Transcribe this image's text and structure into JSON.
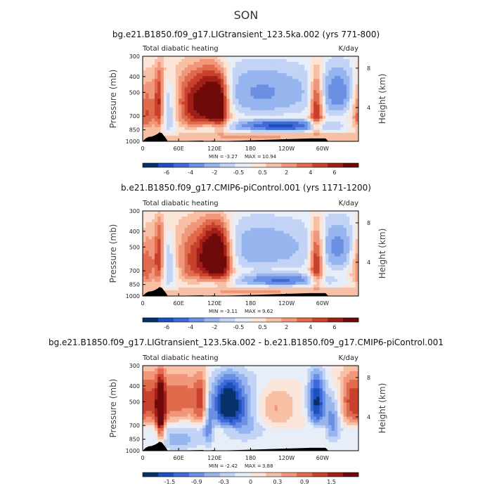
{
  "figure_title": "SON",
  "chart_data": [
    {
      "type": "heatmap",
      "title": "bg.e21.B1850.f09_g17.LIGtransient_123.5ka.002 (yrs 771-800)",
      "left_label": "Total diabatic heating",
      "units": "K/day",
      "ylabel": "Pressure (mb)",
      "ylabel_right": "Height (km)",
      "x_ticks": [
        "0",
        "60E",
        "120E",
        "180",
        "120W",
        "60W"
      ],
      "x_tick_lons": [
        0,
        60,
        120,
        180,
        240,
        300
      ],
      "xlim": [
        0,
        360
      ],
      "y_ticks": [
        "300",
        "400",
        "500",
        "700",
        "850",
        "1000"
      ],
      "y_tick_values": [
        300,
        400,
        500,
        700,
        850,
        1000
      ],
      "ylim": [
        1000,
        300
      ],
      "right_ticks": [
        "8",
        "4"
      ],
      "right_tick_values": [
        8,
        4
      ],
      "stats": {
        "min_label": "MIN =",
        "min": "-3.27",
        "max_label": "MAX =",
        "max": "10.94"
      },
      "colorbar": {
        "levels": [
          "-6",
          "-4",
          "-2",
          "-0.5",
          "0.5",
          "2",
          "4",
          "6"
        ],
        "colors": [
          "#08306b",
          "#1f4fbf",
          "#3d6ad6",
          "#6a8fe3",
          "#96b4ee",
          "#c2d3f5",
          "#e8eef8",
          "#fbe4d8",
          "#f7c0a4",
          "#f0967a",
          "#e06a4c",
          "#c8412d",
          "#a21f16",
          "#6e0a0a"
        ]
      },
      "features": [
        {
          "lon": 5,
          "width": 12,
          "pmin": 320,
          "pmax": 900,
          "amp": 0.7
        },
        {
          "lon": 28,
          "width": 6,
          "pmin": 300,
          "pmax": 880,
          "amp": 0.85
        },
        {
          "lon": 80,
          "width": 22,
          "pmin": 300,
          "pmax": 850,
          "amp": 0.75
        },
        {
          "lon": 115,
          "width": 18,
          "pmin": 300,
          "pmax": 800,
          "amp": 1.0
        },
        {
          "lon": 130,
          "width": 10,
          "pmin": 350,
          "pmax": 900,
          "amp": 0.6
        },
        {
          "lon": 290,
          "width": 8,
          "pmin": 300,
          "pmax": 900,
          "amp": 0.9
        },
        {
          "lon": 200,
          "width": 70,
          "pmin": 300,
          "pmax": 700,
          "amp": -0.45
        },
        {
          "lon": 230,
          "width": 60,
          "pmin": 750,
          "pmax": 850,
          "amp": -0.75
        },
        {
          "lon": 330,
          "width": 25,
          "pmin": 300,
          "pmax": 700,
          "amp": -0.45
        },
        {
          "lon": 40,
          "width": 12,
          "pmin": 400,
          "pmax": 900,
          "amp": -0.45
        },
        {
          "lon": 180,
          "width": 180,
          "pmin": 900,
          "pmax": 1000,
          "amp": 0.3
        }
      ],
      "terrain": [
        [
          0,
          1000
        ],
        [
          5,
          960
        ],
        [
          10,
          940
        ],
        [
          15,
          935
        ],
        [
          20,
          920
        ],
        [
          25,
          900
        ],
        [
          28,
          880
        ],
        [
          32,
          890
        ],
        [
          35,
          920
        ],
        [
          38,
          950
        ],
        [
          42,
          1000
        ],
        [
          100,
          990
        ],
        [
          105,
          1000
        ],
        [
          120,
          990
        ],
        [
          123,
          1000
        ],
        [
          280,
          960
        ],
        [
          305,
          960
        ],
        [
          310,
          1000
        ],
        [
          360,
          1000
        ]
      ]
    },
    {
      "type": "heatmap",
      "title": "b.e21.B1850.f09_g17.CMIP6-piControl.001 (yrs 1171-1200)",
      "left_label": "Total diabatic heating",
      "units": "K/day",
      "ylabel": "Pressure (mb)",
      "ylabel_right": "Height (km)",
      "x_ticks": [
        "0",
        "60E",
        "120E",
        "180",
        "120W",
        "60W"
      ],
      "x_tick_lons": [
        0,
        60,
        120,
        180,
        240,
        300
      ],
      "xlim": [
        0,
        360
      ],
      "y_ticks": [
        "300",
        "400",
        "500",
        "700",
        "850",
        "1000"
      ],
      "y_tick_values": [
        300,
        400,
        500,
        700,
        850,
        1000
      ],
      "ylim": [
        1000,
        300
      ],
      "right_ticks": [
        "8",
        "4"
      ],
      "right_tick_values": [
        8,
        4
      ],
      "stats": {
        "min_label": "MIN =",
        "min": "-3.11",
        "max_label": "MAX =",
        "max": "9.62"
      },
      "colorbar": {
        "levels": [
          "-6",
          "-4",
          "-2",
          "-0.5",
          "0.5",
          "2",
          "4",
          "6"
        ],
        "colors": [
          "#08306b",
          "#1f4fbf",
          "#3d6ad6",
          "#6a8fe3",
          "#96b4ee",
          "#c2d3f5",
          "#e8eef8",
          "#fbe4d8",
          "#f7c0a4",
          "#f0967a",
          "#e06a4c",
          "#c8412d",
          "#a21f16",
          "#6e0a0a"
        ]
      },
      "features": [
        {
          "lon": 5,
          "width": 12,
          "pmin": 320,
          "pmax": 900,
          "amp": 0.65
        },
        {
          "lon": 28,
          "width": 6,
          "pmin": 300,
          "pmax": 880,
          "amp": 0.8
        },
        {
          "lon": 85,
          "width": 25,
          "pmin": 300,
          "pmax": 850,
          "amp": 0.65
        },
        {
          "lon": 118,
          "width": 16,
          "pmin": 300,
          "pmax": 800,
          "amp": 0.95
        },
        {
          "lon": 135,
          "width": 12,
          "pmin": 320,
          "pmax": 880,
          "amp": 0.6
        },
        {
          "lon": 290,
          "width": 8,
          "pmin": 300,
          "pmax": 900,
          "amp": 0.9
        },
        {
          "lon": 200,
          "width": 70,
          "pmin": 300,
          "pmax": 700,
          "amp": -0.4
        },
        {
          "lon": 230,
          "width": 55,
          "pmin": 740,
          "pmax": 850,
          "amp": -0.6
        },
        {
          "lon": 330,
          "width": 25,
          "pmin": 300,
          "pmax": 700,
          "amp": -0.4
        },
        {
          "lon": 40,
          "width": 12,
          "pmin": 400,
          "pmax": 900,
          "amp": -0.45
        },
        {
          "lon": 180,
          "width": 180,
          "pmin": 900,
          "pmax": 1000,
          "amp": 0.3
        }
      ],
      "terrain": [
        [
          0,
          1000
        ],
        [
          5,
          960
        ],
        [
          10,
          940
        ],
        [
          15,
          935
        ],
        [
          20,
          920
        ],
        [
          25,
          900
        ],
        [
          28,
          880
        ],
        [
          32,
          890
        ],
        [
          35,
          920
        ],
        [
          38,
          950
        ],
        [
          42,
          1000
        ],
        [
          100,
          990
        ],
        [
          105,
          1000
        ],
        [
          120,
          990
        ],
        [
          123,
          1000
        ],
        [
          280,
          960
        ],
        [
          305,
          960
        ],
        [
          310,
          1000
        ],
        [
          360,
          1000
        ]
      ]
    },
    {
      "type": "heatmap",
      "title": "bg.e21.B1850.f09_g17.LIGtransient_123.5ka.002 - b.e21.B1850.f09_g17.CMIP6-piControl.001",
      "left_label": "Total diabatic heating",
      "units": "K/day",
      "ylabel": "Pressure (mb)",
      "ylabel_right": "Height (km)",
      "x_ticks": [
        "0",
        "60E",
        "120E",
        "180",
        "120W",
        "60W"
      ],
      "x_tick_lons": [
        0,
        60,
        120,
        180,
        240,
        300
      ],
      "xlim": [
        0,
        360
      ],
      "y_ticks": [
        "300",
        "400",
        "500",
        "700",
        "850",
        "1000"
      ],
      "y_tick_values": [
        300,
        400,
        500,
        700,
        850,
        1000
      ],
      "ylim": [
        1000,
        300
      ],
      "right_ticks": [
        "8",
        "4"
      ],
      "right_tick_values": [
        8,
        4
      ],
      "stats": {
        "min_label": "MIN =",
        "min": "-2.42",
        "max_label": "MAX =",
        "max": "3.88"
      },
      "colorbar": {
        "levels": [
          "-1.5",
          "-0.9",
          "-0.3",
          "0",
          "0.3",
          "0.9",
          "1.5"
        ],
        "colors": [
          "#08306b",
          "#1f4fbf",
          "#3d6ad6",
          "#6a8fe3",
          "#96b4ee",
          "#c2d3f5",
          "#e8eef8",
          "#fbe4d8",
          "#f7c0a4",
          "#f0967a",
          "#e06a4c",
          "#c8412d",
          "#a21f16",
          "#6e0a0a"
        ]
      },
      "features": [
        {
          "lon": 15,
          "width": 20,
          "pmin": 300,
          "pmax": 700,
          "amp": 0.55
        },
        {
          "lon": 30,
          "width": 5,
          "pmin": 300,
          "pmax": 900,
          "amp": 0.95
        },
        {
          "lon": 65,
          "width": 22,
          "pmin": 300,
          "pmax": 650,
          "amp": 0.5
        },
        {
          "lon": 100,
          "width": 10,
          "pmin": 300,
          "pmax": 700,
          "amp": 0.6
        },
        {
          "lon": 110,
          "width": 6,
          "pmin": 300,
          "pmax": 950,
          "amp": -0.5
        },
        {
          "lon": 140,
          "width": 18,
          "pmin": 320,
          "pmax": 700,
          "amp": -0.9
        },
        {
          "lon": 170,
          "width": 25,
          "pmin": 300,
          "pmax": 900,
          "amp": -0.45
        },
        {
          "lon": 215,
          "width": 28,
          "pmin": 400,
          "pmax": 700,
          "amp": 0.35
        },
        {
          "lon": 290,
          "width": 10,
          "pmin": 300,
          "pmax": 700,
          "amp": -0.9
        },
        {
          "lon": 318,
          "width": 10,
          "pmin": 400,
          "pmax": 900,
          "amp": -0.5
        },
        {
          "lon": 345,
          "width": 14,
          "pmin": 300,
          "pmax": 700,
          "amp": 0.45
        },
        {
          "lon": 60,
          "width": 30,
          "pmin": 700,
          "pmax": 1000,
          "amp": -0.35
        }
      ],
      "terrain": [
        [
          0,
          1000
        ],
        [
          5,
          960
        ],
        [
          10,
          940
        ],
        [
          15,
          935
        ],
        [
          20,
          920
        ],
        [
          25,
          900
        ],
        [
          28,
          880
        ],
        [
          32,
          890
        ],
        [
          35,
          920
        ],
        [
          38,
          950
        ],
        [
          42,
          1000
        ],
        [
          100,
          990
        ],
        [
          105,
          1000
        ],
        [
          120,
          990
        ],
        [
          123,
          1000
        ],
        [
          280,
          960
        ],
        [
          305,
          960
        ],
        [
          310,
          1000
        ],
        [
          360,
          1000
        ]
      ]
    }
  ]
}
